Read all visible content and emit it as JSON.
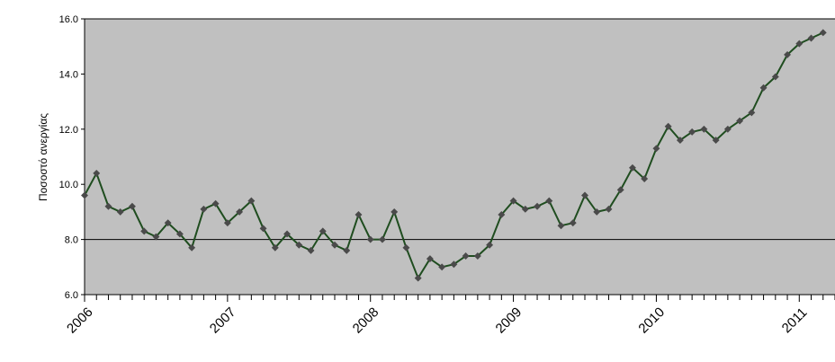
{
  "chart_data": {
    "type": "line",
    "title": "",
    "xlabel": "",
    "ylabel": "Ποσοστό ανεργίας",
    "ylim": [
      6.0,
      16.0
    ],
    "yticks": [
      "16.0",
      "14.0",
      "12.0",
      "10.0",
      "8.0",
      "6.0"
    ],
    "xlim": [
      2006,
      2011.25
    ],
    "xtick_labels": [
      "2006",
      "2007",
      "2008",
      "2009",
      "2010",
      "2011"
    ],
    "grid": "horizontal major lines at 8.0 and 16.0",
    "colors": {
      "line": "#1f4d1f",
      "marker": "#4a4a4a",
      "plot_bg": "#c0c0c0",
      "gridline": "#000000"
    },
    "series": [
      {
        "name": "",
        "x": [
          "2006-01",
          "2006-02",
          "2006-03",
          "2006-04",
          "2006-05",
          "2006-06",
          "2006-07",
          "2006-08",
          "2006-09",
          "2006-10",
          "2006-11",
          "2006-12",
          "2007-01",
          "2007-02",
          "2007-03",
          "2007-04",
          "2007-05",
          "2007-06",
          "2007-07",
          "2007-08",
          "2007-09",
          "2007-10",
          "2007-11",
          "2007-12",
          "2008-01",
          "2008-02",
          "2008-03",
          "2008-04",
          "2008-05",
          "2008-06",
          "2008-07",
          "2008-08",
          "2008-09",
          "2008-10",
          "2008-11",
          "2008-12",
          "2009-01",
          "2009-02",
          "2009-03",
          "2009-04",
          "2009-05",
          "2009-06",
          "2009-07",
          "2009-08",
          "2009-09",
          "2009-10",
          "2009-11",
          "2009-12",
          "2010-01",
          "2010-02",
          "2010-03",
          "2010-04",
          "2010-05",
          "2010-06",
          "2010-07",
          "2010-08",
          "2010-09",
          "2010-10",
          "2010-11",
          "2010-12",
          "2011-01",
          "2011-02",
          "2011-03"
        ],
        "values": [
          9.6,
          10.4,
          9.2,
          9.0,
          9.2,
          8.3,
          8.1,
          8.6,
          8.2,
          7.7,
          9.1,
          9.3,
          8.6,
          9.0,
          9.4,
          8.4,
          7.7,
          8.2,
          7.8,
          7.6,
          8.3,
          7.8,
          7.6,
          8.9,
          8.0,
          8.0,
          9.0,
          7.7,
          6.6,
          7.3,
          7.0,
          7.1,
          7.4,
          7.4,
          7.8,
          8.9,
          9.4,
          9.1,
          9.2,
          9.4,
          8.5,
          8.6,
          9.6,
          9.0,
          9.1,
          9.8,
          10.6,
          10.2,
          11.3,
          12.1,
          11.6,
          11.9,
          12.0,
          11.6,
          12.0,
          12.3,
          12.6,
          13.5,
          13.9,
          14.7,
          15.1,
          15.3,
          15.5
        ]
      }
    ]
  }
}
